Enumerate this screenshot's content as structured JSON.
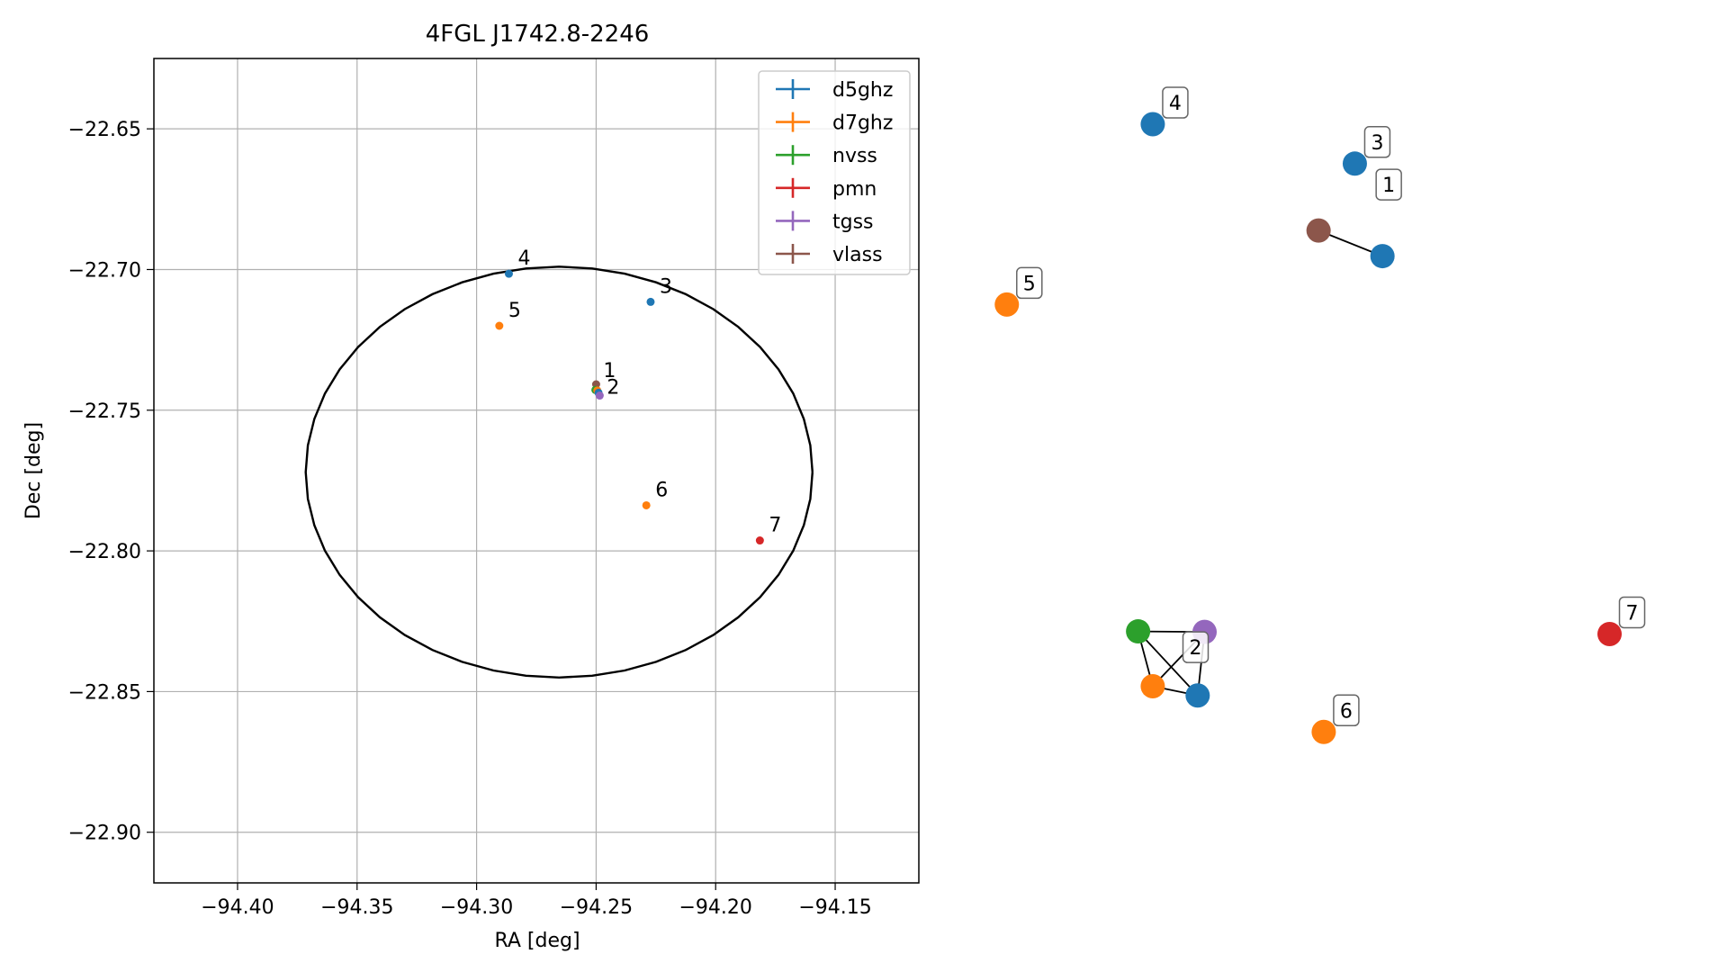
{
  "chart_data": [
    {
      "type": "scatter",
      "title": "4FGL J1742.8-2246",
      "xlabel": "RA [deg]",
      "ylabel": "Dec [deg]",
      "xlim": [
        -94.435,
        -94.115
      ],
      "ylim": [
        -22.918,
        -22.625
      ],
      "x_ticks": [
        -94.4,
        -94.35,
        -94.3,
        -94.25,
        -94.2,
        -94.15
      ],
      "x_tick_labels": [
        "−94.40",
        "−94.35",
        "−94.30",
        "−94.25",
        "−94.20",
        "−94.15"
      ],
      "y_ticks": [
        -22.65,
        -22.7,
        -22.75,
        -22.8,
        -22.85,
        -22.9
      ],
      "y_tick_labels": [
        "−22.65",
        "−22.70",
        "−22.75",
        "−22.80",
        "−22.85",
        "−22.90"
      ],
      "grid": true,
      "legend_position": "top-right",
      "series": [
        {
          "name": "d5ghz",
          "color": "#1f77b4"
        },
        {
          "name": "d7ghz",
          "color": "#ff7f0e"
        },
        {
          "name": "nvss",
          "color": "#2ca02c"
        },
        {
          "name": "pmn",
          "color": "#d62728"
        },
        {
          "name": "tgss",
          "color": "#9467bd"
        },
        {
          "name": "vlass",
          "color": "#8c564b"
        }
      ],
      "points": [
        {
          "series": "d5ghz",
          "x": -94.2865,
          "y": -22.7015,
          "label": "4"
        },
        {
          "series": "d5ghz",
          "x": -94.2272,
          "y": -22.7115,
          "label": "3"
        },
        {
          "series": "d7ghz",
          "x": -94.2905,
          "y": -22.72,
          "label": "5"
        },
        {
          "series": "vlass",
          "x": -94.25,
          "y": -22.7408,
          "label": "1"
        },
        {
          "series": "nvss",
          "x": -94.2503,
          "y": -22.7428,
          "label": ""
        },
        {
          "series": "d7ghz",
          "x": -94.2495,
          "y": -22.743,
          "label": ""
        },
        {
          "series": "d5ghz",
          "x": -94.249,
          "y": -22.7438,
          "label": ""
        },
        {
          "series": "tgss",
          "x": -94.2485,
          "y": -22.7448,
          "label": "2"
        },
        {
          "series": "d7ghz",
          "x": -94.229,
          "y": -22.7838,
          "label": "6"
        },
        {
          "series": "pmn",
          "x": -94.1815,
          "y": -22.7963,
          "label": "7"
        }
      ],
      "ellipse": {
        "center_x": -94.2655,
        "center_y": -22.772,
        "semi_ra": 0.106,
        "semi_dec": 0.073,
        "color": "#000000"
      }
    },
    {
      "type": "network",
      "nodes": [
        {
          "id": "a",
          "series": "d5ghz",
          "x": 0.6675,
          "y": 0.0,
          "tag": "4"
        },
        {
          "id": "b",
          "series": "d5ghz",
          "x": 0.7845,
          "y": 0.06,
          "tag": "3"
        },
        {
          "id": "c",
          "series": "vlass",
          "x": 0.7635,
          "y": 0.1618,
          "tag": "1"
        },
        {
          "id": "d",
          "series": "d5ghz",
          "x": 0.8005,
          "y": 0.2008,
          "tag": ""
        },
        {
          "id": "e",
          "series": "d7ghz",
          "x": 0.583,
          "y": 0.2745,
          "tag": "5"
        },
        {
          "id": "f",
          "series": "nvss",
          "x": 0.659,
          "y": 0.772,
          "tag": ""
        },
        {
          "id": "g",
          "series": "tgss",
          "x": 0.6975,
          "y": 0.7728,
          "tag": "2"
        },
        {
          "id": "h",
          "series": "d7ghz",
          "x": 0.6675,
          "y": 0.8555,
          "tag": ""
        },
        {
          "id": "i",
          "series": "d5ghz",
          "x": 0.6935,
          "y": 0.8695,
          "tag": ""
        },
        {
          "id": "j",
          "series": "pmn",
          "x": 0.932,
          "y": 0.776,
          "tag": "7"
        },
        {
          "id": "k",
          "series": "d7ghz",
          "x": 0.7665,
          "y": 0.925,
          "tag": "6"
        }
      ],
      "edges": [
        [
          "c",
          "d"
        ],
        [
          "f",
          "g"
        ],
        [
          "f",
          "h"
        ],
        [
          "f",
          "i"
        ],
        [
          "g",
          "h"
        ],
        [
          "g",
          "i"
        ],
        [
          "h",
          "i"
        ]
      ]
    }
  ]
}
